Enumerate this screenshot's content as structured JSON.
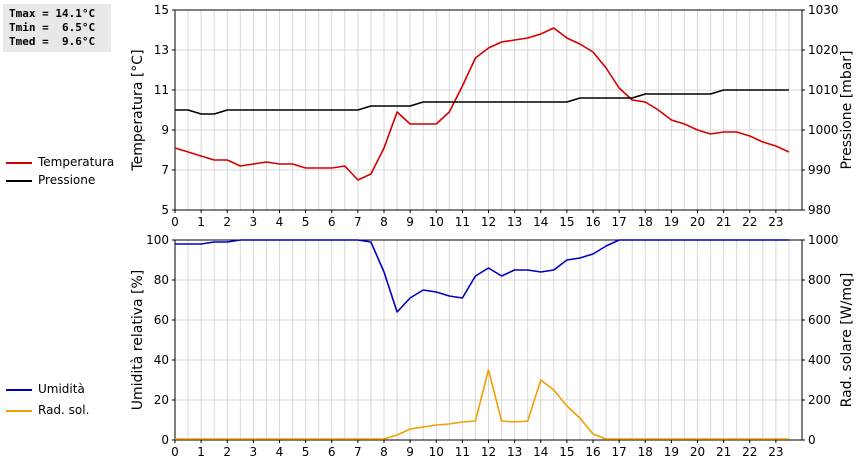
{
  "stats": {
    "tmax": "Tmax = 14.1°C",
    "tmin": "Tmin =  6.5°C",
    "tmed": "Tmed =  9.6°C"
  },
  "legend_top": [
    {
      "label": "Temperatura",
      "color": "#d40000"
    },
    {
      "label": "Pressione",
      "color": "#000000"
    }
  ],
  "legend_bottom": [
    {
      "label": "Umidità",
      "color": "#0000c0"
    },
    {
      "label": "Rad. sol.",
      "color": "#f0a000"
    }
  ],
  "chart_data": [
    {
      "type": "line",
      "xlabel": "",
      "xlim": [
        0,
        24
      ],
      "x_ticks": [
        "0",
        "1",
        "2",
        "3",
        "4",
        "5",
        "6",
        "7",
        "8",
        "9",
        "10",
        "11",
        "12",
        "13",
        "14",
        "15",
        "16",
        "17",
        "18",
        "19",
        "20",
        "21",
        "22",
        "23"
      ],
      "grid": true,
      "y_left": {
        "label": "Temperatura [°C]",
        "lim": [
          5,
          15
        ],
        "ticks": [
          "5",
          "7",
          "9",
          "11",
          "13",
          "15"
        ]
      },
      "y_right": {
        "label": "Pressione [mbar]",
        "lim": [
          980,
          1030
        ],
        "ticks": [
          "980",
          "990",
          "1000",
          "1010",
          "1020",
          "1030"
        ]
      },
      "series": [
        {
          "name": "Temperatura",
          "color": "#d40000",
          "axis": "left",
          "x": [
            0,
            0.5,
            1,
            1.5,
            2,
            2.5,
            3,
            3.5,
            4,
            4.5,
            5,
            5.5,
            6,
            6.5,
            7,
            7.5,
            8,
            8.5,
            9,
            9.5,
            10,
            10.5,
            11,
            11.5,
            12,
            12.5,
            13,
            13.5,
            14,
            14.5,
            15,
            15.5,
            16,
            16.5,
            17,
            17.5,
            18,
            18.5,
            19,
            19.5,
            20,
            20.5,
            21,
            21.5,
            22,
            22.5,
            23,
            23.5
          ],
          "values": [
            8.1,
            7.9,
            7.7,
            7.5,
            7.5,
            7.2,
            7.3,
            7.4,
            7.3,
            7.3,
            7.1,
            7.1,
            7.1,
            7.2,
            6.5,
            6.8,
            8.1,
            9.9,
            9.3,
            9.3,
            9.3,
            9.9,
            11.2,
            12.6,
            13.1,
            13.4,
            13.5,
            13.6,
            13.8,
            14.1,
            13.6,
            13.3,
            12.9,
            12.1,
            11.1,
            10.5,
            10.4,
            10.0,
            9.5,
            9.3,
            9.0,
            8.8,
            8.9,
            8.9,
            8.7,
            8.4,
            8.2,
            7.9
          ]
        },
        {
          "name": "Pressione",
          "color": "#000000",
          "axis": "right",
          "x": [
            0,
            0.5,
            1,
            1.5,
            2,
            2.5,
            3,
            3.5,
            4,
            4.5,
            5,
            5.5,
            6,
            6.5,
            7,
            7.5,
            8,
            8.5,
            9,
            9.5,
            10,
            10.5,
            11,
            11.5,
            12,
            12.5,
            13,
            13.5,
            14,
            14.5,
            15,
            15.5,
            16,
            16.5,
            17,
            17.5,
            18,
            18.5,
            19,
            19.5,
            20,
            20.5,
            21,
            21.5,
            22,
            22.5,
            23,
            23.5
          ],
          "values": [
            1005,
            1005,
            1004,
            1004,
            1005,
            1005,
            1005,
            1005,
            1005,
            1005,
            1005,
            1005,
            1005,
            1005,
            1005,
            1006,
            1006,
            1006,
            1006,
            1007,
            1007,
            1007,
            1007,
            1007,
            1007,
            1007,
            1007,
            1007,
            1007,
            1007,
            1007,
            1008,
            1008,
            1008,
            1008,
            1008,
            1009,
            1009,
            1009,
            1009,
            1009,
            1009,
            1010,
            1010,
            1010,
            1010,
            1010,
            1010
          ]
        }
      ]
    },
    {
      "type": "line",
      "xlabel": "",
      "xlim": [
        0,
        24
      ],
      "x_ticks": [
        "0",
        "1",
        "2",
        "3",
        "4",
        "5",
        "6",
        "7",
        "8",
        "9",
        "10",
        "11",
        "12",
        "13",
        "14",
        "15",
        "16",
        "17",
        "18",
        "19",
        "20",
        "21",
        "22",
        "23"
      ],
      "grid": true,
      "y_left": {
        "label": "Umidità relativa [%]",
        "lim": [
          0,
          100
        ],
        "ticks": [
          "0",
          "20",
          "40",
          "60",
          "80",
          "100"
        ]
      },
      "y_right": {
        "label": "Rad. solare [W/mq]",
        "lim": [
          0,
          1000
        ],
        "ticks": [
          "0",
          "200",
          "400",
          "600",
          "800",
          "1000"
        ]
      },
      "series": [
        {
          "name": "Umidità",
          "color": "#0000c0",
          "axis": "left",
          "x": [
            0,
            0.5,
            1,
            1.5,
            2,
            2.5,
            3,
            3.5,
            4,
            4.5,
            5,
            5.5,
            6,
            6.5,
            7,
            7.5,
            8,
            8.5,
            9,
            9.5,
            10,
            10.5,
            11,
            11.5,
            12,
            12.5,
            13,
            13.5,
            14,
            14.5,
            15,
            15.5,
            16,
            16.5,
            17,
            17.5,
            18,
            18.5,
            19,
            19.5,
            20,
            20.5,
            21,
            21.5,
            22,
            22.5,
            23,
            23.5
          ],
          "values": [
            98,
            98,
            98,
            99,
            99,
            100,
            100,
            100,
            100,
            100,
            100,
            100,
            100,
            100,
            100,
            99,
            84,
            64,
            71,
            75,
            74,
            72,
            71,
            82,
            86,
            82,
            85,
            85,
            84,
            85,
            90,
            91,
            93,
            97,
            100,
            100,
            100,
            100,
            100,
            100,
            100,
            100,
            100,
            100,
            100,
            100,
            100,
            100
          ]
        },
        {
          "name": "Rad. sol.",
          "color": "#f0a000",
          "axis": "right",
          "x": [
            0,
            0.5,
            1,
            1.5,
            2,
            2.5,
            3,
            3.5,
            4,
            4.5,
            5,
            5.5,
            6,
            6.5,
            7,
            7.5,
            8,
            8.5,
            9,
            9.5,
            10,
            10.5,
            11,
            11.5,
            12,
            12.5,
            13,
            13.5,
            14,
            14.5,
            15,
            15.5,
            16,
            16.5,
            17,
            17.5,
            18,
            18.5,
            19,
            19.5,
            20,
            20.5,
            21,
            21.5,
            22,
            22.5,
            23,
            23.5
          ],
          "values": [
            5,
            5,
            5,
            5,
            5,
            5,
            5,
            5,
            5,
            5,
            5,
            5,
            5,
            5,
            5,
            5,
            5,
            25,
            55,
            65,
            75,
            80,
            90,
            95,
            350,
            95,
            90,
            95,
            300,
            250,
            170,
            110,
            30,
            5,
            5,
            5,
            5,
            5,
            5,
            5,
            5,
            5,
            5,
            5,
            5,
            5,
            5,
            5
          ]
        }
      ]
    }
  ]
}
